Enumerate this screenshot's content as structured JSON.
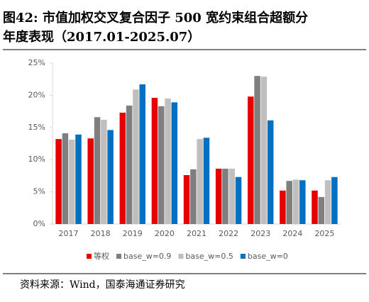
{
  "chart_data": {
    "type": "bar",
    "title": [
      "图42:  市值加权交叉复合因子  500  宽约束组合超额分",
      "年度表现（2017.01-2025.07）"
    ],
    "categories": [
      "2017",
      "2018",
      "2019",
      "2020",
      "2021",
      "2022",
      "2023",
      "2024",
      "2025"
    ],
    "series": [
      {
        "name": "等权",
        "color": "#e60000",
        "values": [
          13.2,
          13.3,
          17.3,
          19.6,
          7.6,
          8.6,
          19.8,
          5.2,
          5.2
        ]
      },
      {
        "name": "base_w=0.9",
        "color": "#7f7f7f",
        "values": [
          14.1,
          16.6,
          18.4,
          18.3,
          8.5,
          8.6,
          23.0,
          6.7,
          4.2
        ]
      },
      {
        "name": "base_w=0.5",
        "color": "#bfbfbf",
        "values": [
          13.1,
          16.2,
          20.9,
          19.5,
          13.2,
          8.6,
          22.9,
          6.9,
          6.8
        ]
      },
      {
        "name": "base_w=0",
        "color": "#0070c0",
        "values": [
          13.9,
          14.6,
          21.7,
          18.9,
          13.4,
          7.3,
          16.1,
          6.8,
          7.3
        ]
      }
    ],
    "ylim": [
      0,
      25
    ],
    "yticks": [
      {
        "value": 0,
        "label": "0%"
      },
      {
        "value": 5,
        "label": "5%"
      },
      {
        "value": 10,
        "label": "10%"
      },
      {
        "value": 15,
        "label": "15%"
      },
      {
        "value": 20,
        "label": "20%"
      },
      {
        "value": 25,
        "label": "25%"
      }
    ],
    "legend": "bottom",
    "source": "资料来源：Wind，国泰海通证券研究"
  }
}
